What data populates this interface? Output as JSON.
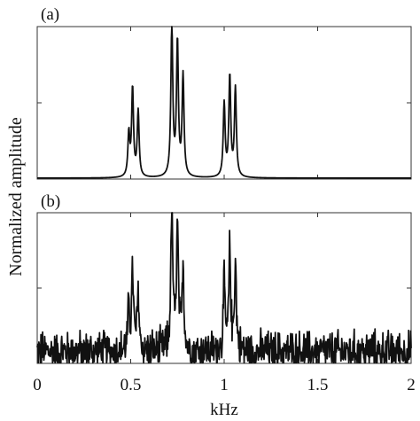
{
  "chart_data": {
    "type": "line",
    "ylabel": "Normalized amplitude",
    "xlabel": "kHz",
    "xlim": [
      0,
      2
    ],
    "x_ticks": [
      0,
      0.5,
      1,
      1.5,
      2
    ],
    "x_tick_labels": [
      "0",
      "0.5",
      "1",
      "1.5",
      "2"
    ],
    "y_tick_fractions": [
      0.5,
      1.0
    ],
    "grid": false,
    "legend": "none",
    "subplots": [
      {
        "label": "(a)",
        "noise": false,
        "baseline": 0.02,
        "peaks": [
          {
            "x": 0.49,
            "amp": 0.28
          },
          {
            "x": 0.51,
            "amp": 0.58
          },
          {
            "x": 0.54,
            "amp": 0.43
          },
          {
            "x": 0.72,
            "amp": 1.0
          },
          {
            "x": 0.75,
            "amp": 0.88
          },
          {
            "x": 0.78,
            "amp": 0.66
          },
          {
            "x": 1.0,
            "amp": 0.48
          },
          {
            "x": 1.03,
            "amp": 0.66
          },
          {
            "x": 1.06,
            "amp": 0.58
          }
        ]
      },
      {
        "label": "(b)",
        "noise": true,
        "baseline": 0.08,
        "noise_level": 0.12,
        "peaks": [
          {
            "x": 0.49,
            "amp": 0.28
          },
          {
            "x": 0.51,
            "amp": 0.52
          },
          {
            "x": 0.54,
            "amp": 0.38
          },
          {
            "x": 0.72,
            "amp": 1.0
          },
          {
            "x": 0.75,
            "amp": 0.8
          },
          {
            "x": 0.78,
            "amp": 0.56
          },
          {
            "x": 1.0,
            "amp": 0.42
          },
          {
            "x": 1.03,
            "amp": 0.65
          },
          {
            "x": 1.06,
            "amp": 0.58
          }
        ]
      }
    ]
  }
}
